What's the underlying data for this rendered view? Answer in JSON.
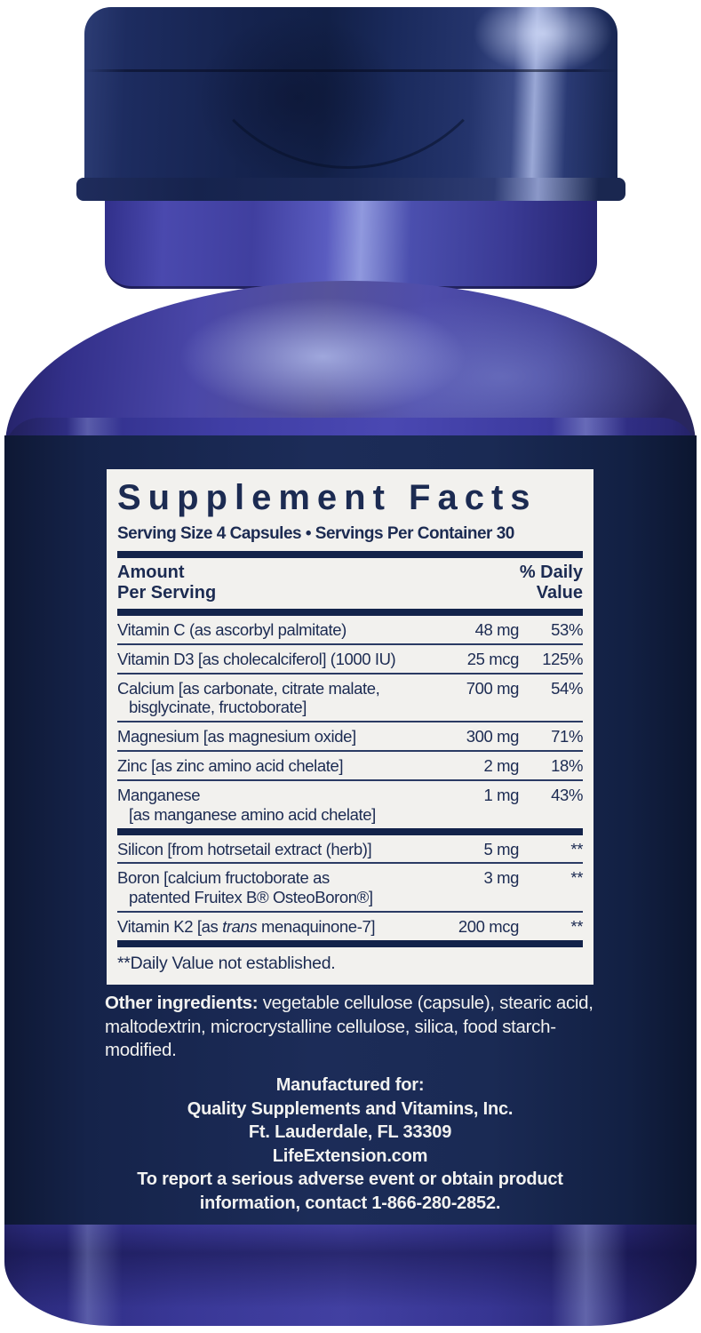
{
  "product": {
    "panel": {
      "title": "Supplement Facts",
      "serving_line": "Serving Size 4 Capsules • Servings Per Container 30",
      "header": {
        "amount_line1": "Amount",
        "amount_line2": "Per Serving",
        "dv_line1": "% Daily",
        "dv_line2": "Value"
      },
      "rows_primary": [
        {
          "name": "Vitamin C (as ascorbyl palmitate)",
          "amount": "48 mg",
          "dv": "53%"
        },
        {
          "name": "Vitamin D3 [as cholecalciferol] (1000 IU)",
          "amount": "25 mcg",
          "dv": "125%"
        },
        {
          "name": "Calcium [as carbonate, citrate malate,\nbisglycinate, fructoborate]",
          "amount": "700 mg",
          "dv": "54%"
        },
        {
          "name": "Magnesium [as magnesium oxide]",
          "amount": "300 mg",
          "dv": "71%"
        },
        {
          "name": "Zinc [as zinc amino acid chelate]",
          "amount": "2 mg",
          "dv": "18%"
        },
        {
          "name": "Manganese\n[as manganese amino acid chelate]",
          "amount": "1 mg",
          "dv": "43%"
        }
      ],
      "rows_secondary": [
        {
          "name": "Silicon [from hotrsetail extract (herb)]",
          "amount": "5 mg",
          "dv": "**"
        },
        {
          "name": "Boron [calcium fructoborate as\npatented Fruitex B® OsteoBoron®]",
          "amount": "3 mg",
          "dv": "**"
        },
        {
          "name_parts": [
            "Vitamin K2 [as ",
            "trans",
            " menaquinone-7]"
          ],
          "amount": "200 mcg",
          "dv": "**"
        }
      ],
      "footnote": "**Daily Value not established."
    },
    "other_ingredients": {
      "lead": "Other ingredients:",
      "text": " vegetable cellulose (capsule), stearic acid, maltodextrin, microcrystalline cellulose, silica, food starch-modified."
    },
    "manufactured": {
      "lines": [
        "Manufactured for:",
        "Quality Supplements and Vitamins, Inc.",
        "Ft. Lauderdale, FL 33309",
        "LifeExtension.com",
        "To report a serious adverse event or obtain product information, contact 1-866-280-2852."
      ]
    },
    "colors": {
      "label_navy": "#18244c",
      "panel_background": "#f2f1ee",
      "ink_navy": "#1c2b52",
      "bottle_violet": "#4a48b2",
      "cap_navy": "#16244e",
      "text_white": "#f2f2f0"
    }
  }
}
